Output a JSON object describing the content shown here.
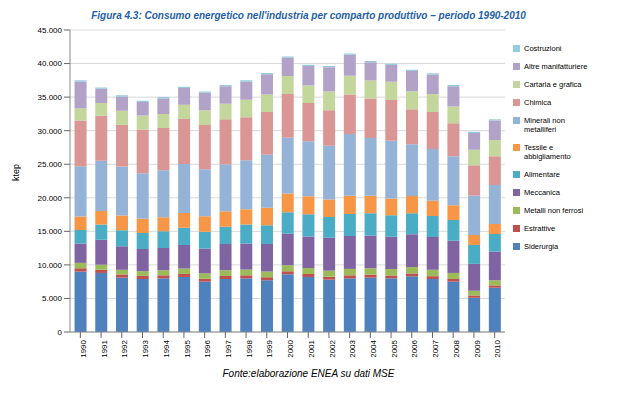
{
  "chart_data": {
    "type": "bar",
    "title": "Figura 4.3: Consumo energetico nell'industria per comparto produttivo – periodo 1990-2010",
    "source": "Fonte:elaborazione ENEA su dati MSE",
    "y_label": "ktep",
    "stacked": true,
    "grid": true,
    "legend": "right",
    "categories": [
      "1990",
      "1991",
      "1992",
      "1993",
      "1994",
      "1995",
      "1996",
      "1997",
      "1998",
      "1999",
      "2000",
      "2001",
      "2002",
      "2003",
      "2004",
      "2005",
      "2006",
      "2007",
      "2008",
      "2009",
      "2010"
    ],
    "ylim": [
      0,
      45000
    ],
    "yticks": [
      0,
      {
        "value": 5000,
        "label": "5.000"
      },
      {
        "value": 10000,
        "label": "10.000"
      },
      {
        "value": 15000,
        "label": "15.000"
      },
      {
        "value": 20000,
        "label": "20.000"
      },
      {
        "value": 25000,
        "label": "25.000"
      },
      {
        "value": 30000,
        "label": "30.000"
      },
      {
        "value": 35000,
        "label": "35.000"
      },
      {
        "value": 40000,
        "label": "40.000"
      },
      {
        "value": 45000,
        "label": "45.000"
      }
    ],
    "series": [
      {
        "name": "Siderurgia",
        "color": "#4f81bd",
        "values": [
          9000,
          8800,
          8100,
          7900,
          8000,
          8200,
          7500,
          7900,
          8000,
          7700,
          8600,
          8200,
          7800,
          8000,
          8100,
          8000,
          8300,
          7900,
          7500,
          5100,
          6600
        ]
      },
      {
        "name": "Estrattive",
        "color": "#c0504d",
        "values": [
          500,
          480,
          470,
          460,
          450,
          450,
          440,
          450,
          450,
          450,
          450,
          440,
          440,
          450,
          440,
          430,
          430,
          420,
          400,
          350,
          350
        ]
      },
      {
        "name": "Metalli non ferrosi",
        "color": "#9bbb59",
        "values": [
          800,
          750,
          700,
          700,
          750,
          800,
          800,
          850,
          850,
          850,
          900,
          900,
          900,
          950,
          950,
          950,
          950,
          950,
          900,
          700,
          750
        ]
      },
      {
        "name": "Meccanica",
        "color": "#8064a2",
        "values": [
          2900,
          3700,
          3500,
          3300,
          3300,
          3500,
          3700,
          3900,
          3900,
          4100,
          4700,
          4700,
          4900,
          4900,
          4900,
          4800,
          4900,
          4900,
          4800,
          4000,
          4300
        ]
      },
      {
        "name": "Alimentare",
        "color": "#4bacc6",
        "values": [
          2000,
          2300,
          2400,
          2400,
          2500,
          2600,
          2500,
          2600,
          2800,
          2800,
          3200,
          3300,
          3100,
          3300,
          3300,
          3200,
          3100,
          3100,
          3100,
          2800,
          2600
        ]
      },
      {
        "name": "Tessile e abbigliamento",
        "color": "#f79646",
        "values": [
          2000,
          2000,
          2200,
          2100,
          2100,
          2200,
          2300,
          2300,
          2300,
          2600,
          2800,
          2700,
          2600,
          2700,
          2600,
          2500,
          2600,
          2300,
          2200,
          1500,
          1500
        ]
      },
      {
        "name": "Minerali non metalliferi",
        "color": "#95b3d7",
        "values": [
          7500,
          7500,
          7300,
          6800,
          7000,
          7300,
          7000,
          7000,
          7300,
          7900,
          8300,
          8200,
          8000,
          9200,
          8600,
          8600,
          7700,
          7700,
          7300,
          5900,
          5800
        ]
      },
      {
        "name": "Chimica",
        "color": "#d99694",
        "values": [
          6800,
          6700,
          6200,
          6500,
          6300,
          6700,
          6600,
          6700,
          6400,
          6400,
          6500,
          5700,
          5300,
          5900,
          5900,
          6100,
          5200,
          5500,
          4900,
          4500,
          4300
        ]
      },
      {
        "name": "Cartaria e grafica",
        "color": "#c3d69b",
        "values": [
          1800,
          1900,
          2100,
          2100,
          2100,
          2100,
          2200,
          2300,
          2600,
          2600,
          2700,
          2600,
          2800,
          2800,
          2700,
          2700,
          2700,
          2700,
          2500,
          2300,
          2400
        ]
      },
      {
        "name": "Altre manifatturiere",
        "color": "#b3a2c7",
        "values": [
          4000,
          2100,
          2100,
          2000,
          2300,
          2500,
          2600,
          2600,
          2700,
          3000,
          2700,
          2900,
          3600,
          3100,
          2700,
          2500,
          3000,
          2900,
          3000,
          2500,
          2900
        ]
      },
      {
        "name": "Costruzioni",
        "color": "#93cddd",
        "values": [
          200,
          200,
          200,
          200,
          200,
          200,
          200,
          200,
          200,
          200,
          200,
          200,
          200,
          200,
          200,
          200,
          200,
          200,
          200,
          200,
          200
        ]
      }
    ]
  }
}
